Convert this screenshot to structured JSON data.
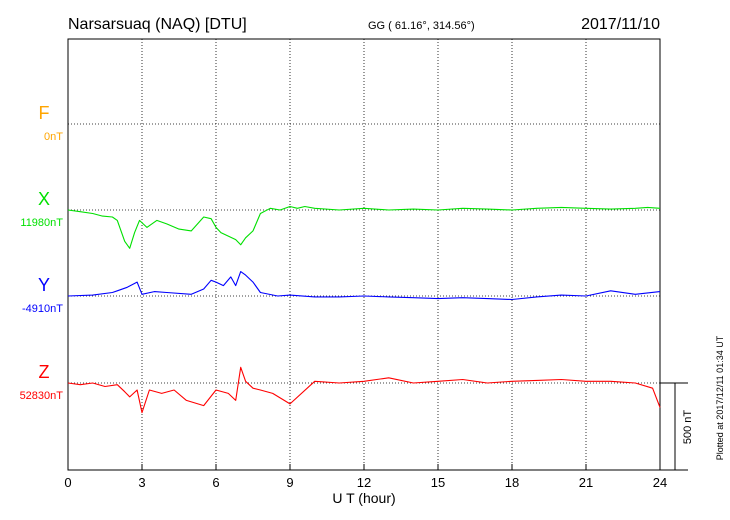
{
  "header": {
    "station": "Narsarsuaq (NAQ)  [DTU]",
    "coords": "GG ( 61.16°, 314.56°)",
    "date": "2017/11/10"
  },
  "side_note": "Plotted at 2017/12/11 01:34 UT",
  "chart_data": {
    "type": "line",
    "xlabel": "U T (hour)",
    "xlim": [
      0,
      24
    ],
    "xticks": [
      "0",
      "3",
      "6",
      "9",
      "12",
      "15",
      "18",
      "21",
      "24"
    ],
    "scale_bar_label": "500 nT",
    "series": [
      {
        "name": "F",
        "baseline_label": "0nT",
        "color": "#ffa500",
        "x": [],
        "y": []
      },
      {
        "name": "X",
        "baseline_label": "11980nT",
        "color": "#00e000",
        "x": [
          0,
          0.5,
          1.0,
          1.4,
          1.8,
          2.0,
          2.3,
          2.5,
          2.7,
          2.9,
          3.2,
          3.6,
          4.0,
          4.5,
          5.0,
          5.5,
          5.8,
          6.0,
          6.2,
          6.5,
          6.8,
          7.0,
          7.2,
          7.5,
          7.8,
          8.2,
          8.6,
          9.0,
          9.3,
          9.6,
          10.0,
          11.0,
          12.0,
          13.0,
          14.0,
          15.0,
          16.0,
          17.0,
          18.0,
          19.0,
          20.0,
          21.0,
          22.0,
          23.0,
          23.5,
          24.0
        ],
        "y": [
          0,
          -10,
          -20,
          -35,
          -40,
          -60,
          -180,
          -220,
          -130,
          -60,
          -100,
          -60,
          -80,
          -110,
          -120,
          -40,
          -50,
          -100,
          -130,
          -150,
          -170,
          -200,
          -160,
          -120,
          -20,
          10,
          0,
          20,
          10,
          20,
          10,
          0,
          10,
          0,
          5,
          0,
          10,
          5,
          0,
          10,
          15,
          10,
          5,
          10,
          15,
          10
        ]
      },
      {
        "name": "Y",
        "baseline_label": "-4910nT",
        "color": "#0000ff",
        "x": [
          0,
          1.0,
          1.8,
          2.0,
          2.4,
          2.8,
          3.0,
          3.5,
          4.0,
          5.0,
          5.5,
          5.8,
          6.0,
          6.3,
          6.6,
          6.8,
          7.0,
          7.2,
          7.5,
          7.8,
          8.5,
          9.0,
          10.0,
          11.0,
          12.0,
          13.0,
          14.0,
          15.0,
          16.0,
          17.0,
          18.0,
          19.0,
          20.0,
          21.0,
          22.0,
          23.0,
          24.0
        ],
        "y": [
          0,
          5,
          20,
          30,
          50,
          80,
          10,
          25,
          20,
          10,
          40,
          90,
          80,
          60,
          110,
          60,
          140,
          120,
          80,
          20,
          0,
          5,
          -5,
          -5,
          0,
          -5,
          -10,
          -15,
          -10,
          -15,
          -20,
          -5,
          5,
          0,
          30,
          10,
          25
        ]
      },
      {
        "name": "Z",
        "baseline_label": "52830nT",
        "color": "#ff0000",
        "x": [
          0,
          0.5,
          1.0,
          1.5,
          2.0,
          2.3,
          2.5,
          2.8,
          3.0,
          3.3,
          3.8,
          4.3,
          4.8,
          5.5,
          6.0,
          6.5,
          6.8,
          7.0,
          7.2,
          7.5,
          7.8,
          8.3,
          9.0,
          10.0,
          11.0,
          12.0,
          13.0,
          14.0,
          15.0,
          16.0,
          17.0,
          18.0,
          19.0,
          20.0,
          21.0,
          22.0,
          23.0,
          23.7,
          24.0
        ],
        "y": [
          0,
          -10,
          0,
          -20,
          -10,
          -50,
          -80,
          -40,
          -170,
          -40,
          -60,
          -40,
          -100,
          -130,
          -40,
          -60,
          -100,
          90,
          10,
          -30,
          -40,
          -60,
          -120,
          10,
          0,
          10,
          30,
          0,
          10,
          20,
          0,
          10,
          15,
          20,
          10,
          10,
          0,
          -30,
          -140
        ]
      }
    ]
  }
}
